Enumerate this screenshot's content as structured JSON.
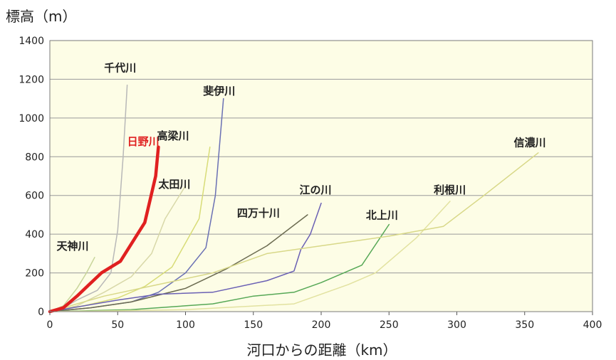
{
  "chart_data": {
    "type": "line",
    "ylabel": "標高（m）",
    "xlabel": "河口からの距離（km）",
    "xlim": [
      0,
      400
    ],
    "ylim": [
      0,
      1400
    ],
    "xticks": [
      0,
      50,
      100,
      150,
      200,
      250,
      300,
      350,
      400
    ],
    "yticks": [
      0,
      200,
      400,
      600,
      800,
      1000,
      1200,
      1400
    ],
    "grid": true,
    "plot_background": "#fdfde6",
    "series": [
      {
        "name": "千代川",
        "color": "#b8b8b8",
        "width": 1.5,
        "points": [
          [
            0,
            0
          ],
          [
            10,
            20
          ],
          [
            20,
            60
          ],
          [
            35,
            110
          ],
          [
            45,
            200
          ],
          [
            50,
            420
          ],
          [
            54,
            800
          ],
          [
            57,
            1170
          ]
        ]
      },
      {
        "name": "天神川",
        "color": "#c8d59a",
        "width": 1.5,
        "points": [
          [
            0,
            0
          ],
          [
            10,
            30
          ],
          [
            20,
            120
          ],
          [
            27,
            200
          ],
          [
            33,
            280
          ]
        ]
      },
      {
        "name": "日野川",
        "color": "#e02020",
        "width": 4.5,
        "points": [
          [
            0,
            0
          ],
          [
            10,
            20
          ],
          [
            20,
            80
          ],
          [
            38,
            200
          ],
          [
            52,
            260
          ],
          [
            70,
            460
          ],
          [
            78,
            700
          ],
          [
            80,
            850
          ]
        ]
      },
      {
        "name": "太田川",
        "color": "#d8d8a8",
        "width": 1.5,
        "points": [
          [
            0,
            0
          ],
          [
            20,
            30
          ],
          [
            40,
            100
          ],
          [
            60,
            180
          ],
          [
            75,
            300
          ],
          [
            85,
            480
          ],
          [
            100,
            650
          ]
        ]
      },
      {
        "name": "高梁川",
        "color": "#d8dc78",
        "width": 1.5,
        "points": [
          [
            0,
            0
          ],
          [
            25,
            30
          ],
          [
            50,
            70
          ],
          [
            70,
            130
          ],
          [
            90,
            230
          ],
          [
            110,
            480
          ],
          [
            118,
            850
          ]
        ]
      },
      {
        "name": "斐伊川",
        "color": "#6a70b4",
        "width": 1.5,
        "points": [
          [
            0,
            0
          ],
          [
            30,
            20
          ],
          [
            60,
            50
          ],
          [
            80,
            100
          ],
          [
            100,
            200
          ],
          [
            115,
            330
          ],
          [
            122,
            600
          ],
          [
            128,
            1100
          ]
        ]
      },
      {
        "name": "四万十川",
        "color": "#6b6b50",
        "width": 1.5,
        "points": [
          [
            0,
            0
          ],
          [
            30,
            20
          ],
          [
            60,
            50
          ],
          [
            100,
            120
          ],
          [
            130,
            220
          ],
          [
            160,
            340
          ],
          [
            190,
            500
          ]
        ]
      },
      {
        "name": "江の川",
        "color": "#6a60b4",
        "width": 1.5,
        "points": [
          [
            0,
            0
          ],
          [
            50,
            60
          ],
          [
            80,
            90
          ],
          [
            120,
            100
          ],
          [
            160,
            160
          ],
          [
            180,
            210
          ],
          [
            185,
            320
          ],
          [
            192,
            400
          ],
          [
            200,
            560
          ]
        ]
      },
      {
        "name": "北上川",
        "color": "#56a856",
        "width": 1.5,
        "points": [
          [
            0,
            0
          ],
          [
            60,
            10
          ],
          [
            120,
            40
          ],
          [
            150,
            80
          ],
          [
            180,
            100
          ],
          [
            200,
            150
          ],
          [
            230,
            240
          ],
          [
            250,
            450
          ]
        ]
      },
      {
        "name": "利根川",
        "color": "#e2e2a0",
        "width": 1.5,
        "points": [
          [
            0,
            0
          ],
          [
            100,
            10
          ],
          [
            180,
            40
          ],
          [
            220,
            140
          ],
          [
            240,
            200
          ],
          [
            270,
            380
          ],
          [
            295,
            570
          ]
        ]
      },
      {
        "name": "信濃川",
        "color": "#d8d888",
        "width": 1.5,
        "points": [
          [
            0,
            0
          ],
          [
            40,
            80
          ],
          [
            80,
            140
          ],
          [
            120,
            200
          ],
          [
            160,
            300
          ],
          [
            200,
            340
          ],
          [
            250,
            390
          ],
          [
            290,
            440
          ],
          [
            320,
            600
          ],
          [
            360,
            820
          ]
        ]
      }
    ],
    "labels": [
      {
        "text": "千代川",
        "x": 40,
        "y": 1240,
        "color": "#222222"
      },
      {
        "text": "天神川",
        "x": 5,
        "y": 320,
        "color": "#222222"
      },
      {
        "text": "日野川",
        "x": 57,
        "y": 860,
        "color": "#e02020"
      },
      {
        "text": "高梁川",
        "x": 79,
        "y": 890,
        "color": "#222222"
      },
      {
        "text": "太田川",
        "x": 80,
        "y": 640,
        "color": "#222222"
      },
      {
        "text": "斐伊川",
        "x": 113,
        "y": 1120,
        "color": "#222222"
      },
      {
        "text": "四万十川",
        "x": 138,
        "y": 490,
        "color": "#222222"
      },
      {
        "text": "江の川",
        "x": 184,
        "y": 610,
        "color": "#222222"
      },
      {
        "text": "北上川",
        "x": 233,
        "y": 480,
        "color": "#222222"
      },
      {
        "text": "利根川",
        "x": 283,
        "y": 610,
        "color": "#222222"
      },
      {
        "text": "信濃川",
        "x": 342,
        "y": 855,
        "color": "#222222"
      }
    ]
  }
}
